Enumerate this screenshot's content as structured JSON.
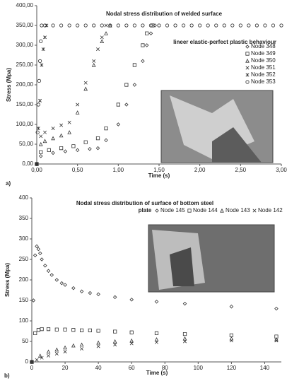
{
  "chart_data": [
    {
      "type": "scatter",
      "title": "Nodal stress distribution of welded surface",
      "annotation": "lineer elastic-perfect plastic behaviour",
      "panel_label": "a)",
      "x_label": "Time (s)",
      "y_label": "Stress (Mpa)",
      "xlim": [
        0,
        3
      ],
      "ylim": [
        0,
        400
      ],
      "xticks": [
        {
          "value": 0,
          "label": "0,00"
        },
        {
          "value": 0.5,
          "label": "0,50"
        },
        {
          "value": 1,
          "label": "1,00"
        },
        {
          "value": 1.5,
          "label": "1,50"
        },
        {
          "value": 2,
          "label": "2,00"
        },
        {
          "value": 2.5,
          "label": "2,50"
        },
        {
          "value": 3,
          "label": "3,00"
        }
      ],
      "yticks": [
        {
          "value": 0,
          "label": "0,00"
        },
        {
          "value": 50,
          "label": "50,00"
        },
        {
          "value": 100,
          "label": "100,00"
        },
        {
          "value": 150,
          "label": "150,00"
        },
        {
          "value": 200,
          "label": "200,00"
        },
        {
          "value": 250,
          "label": "250,00"
        },
        {
          "value": 300,
          "label": "300,00"
        },
        {
          "value": 350,
          "label": "350,00"
        },
        {
          "value": 400,
          "label": "400,00"
        }
      ],
      "series": [
        {
          "name": "Node 348",
          "marker": "diamond",
          "color": "#333333",
          "x": [
            0,
            0.05,
            0.2,
            0.35,
            0.5,
            0.65,
            0.75,
            0.85,
            1.0,
            1.1,
            1.2,
            1.3,
            1.35,
            1.4,
            1.45
          ],
          "values": [
            0,
            20,
            28,
            32,
            35,
            38,
            40,
            60,
            100,
            150,
            200,
            260,
            300,
            330,
            350
          ]
        },
        {
          "name": "Node 349",
          "marker": "square",
          "color": "#333333",
          "x": [
            0,
            0.05,
            0.15,
            0.3,
            0.45,
            0.6,
            0.75,
            0.85,
            1.0,
            1.1,
            1.2,
            1.3,
            1.35,
            1.42
          ],
          "values": [
            0,
            30,
            35,
            40,
            45,
            55,
            65,
            90,
            150,
            200,
            250,
            300,
            330,
            350
          ]
        },
        {
          "name": "Node 350",
          "marker": "triangle",
          "color": "#333333",
          "x": [
            0,
            0.05,
            0.1,
            0.2,
            0.3,
            0.4,
            0.5,
            0.6,
            0.7,
            0.8,
            0.85,
            0.9
          ],
          "values": [
            0,
            50,
            58,
            65,
            72,
            80,
            130,
            190,
            250,
            310,
            330,
            350
          ]
        },
        {
          "name": "Node 351",
          "marker": "cross",
          "color": "#333333",
          "x": [
            0,
            0.05,
            0.1,
            0.2,
            0.3,
            0.4,
            0.5,
            0.6,
            0.7,
            0.75,
            0.8,
            0.85
          ],
          "values": [
            0,
            70,
            80,
            90,
            98,
            105,
            150,
            205,
            260,
            290,
            320,
            350
          ]
        },
        {
          "name": "Node 352",
          "marker": "star",
          "color": "#333333",
          "x": [
            0,
            0.02,
            0.04,
            0.06,
            0.08,
            0.1,
            0.12
          ],
          "values": [
            0,
            90,
            160,
            250,
            290,
            320,
            350
          ]
        },
        {
          "name": "Node 353",
          "marker": "circle",
          "color": "#333333",
          "x": [
            0,
            0.01,
            0.02,
            0.03,
            0.04,
            0.05,
            0.06,
            0.1,
            0.2,
            0.3,
            0.4,
            0.5,
            0.6,
            0.7,
            0.8,
            0.9,
            1.0,
            1.1,
            1.2,
            1.3,
            1.4,
            1.5,
            1.6,
            1.7,
            1.8,
            1.9,
            2.0,
            2.1,
            2.2,
            2.3,
            2.4,
            2.5,
            2.6,
            2.7,
            2.8,
            2.9,
            3.0
          ],
          "values": [
            0,
            80,
            150,
            210,
            260,
            310,
            350,
            350,
            350,
            350,
            350,
            350,
            350,
            350,
            350,
            350,
            350,
            350,
            350,
            350,
            350,
            350,
            350,
            350,
            350,
            350,
            350,
            350,
            350,
            350,
            350,
            350,
            350,
            350,
            350,
            350,
            350
          ]
        }
      ]
    },
    {
      "type": "scatter",
      "title": "Nodal stress distribution of surface of bottom steel plate",
      "panel_label": "b)",
      "x_label": "Time (s)",
      "y_label": "Stress (Mpa)",
      "xlim": [
        0,
        150
      ],
      "ylim": [
        0,
        400
      ],
      "xticks": [
        0,
        20,
        40,
        60,
        80,
        100,
        120,
        140
      ],
      "yticks": [
        0,
        50,
        100,
        150,
        200,
        250,
        300,
        350,
        400
      ],
      "series": [
        {
          "name": "Node 145",
          "marker": "diamond",
          "color": "#333333",
          "x": [
            0,
            1,
            2,
            3,
            4,
            5,
            6,
            8,
            10,
            12,
            15,
            18,
            20,
            25,
            30,
            35,
            40,
            50,
            60,
            75,
            92,
            120,
            147
          ],
          "values": [
            0,
            150,
            260,
            282,
            275,
            265,
            250,
            235,
            222,
            212,
            200,
            192,
            188,
            180,
            172,
            168,
            165,
            158,
            152,
            147,
            142,
            135,
            130
          ]
        },
        {
          "name": "Node 144",
          "marker": "square",
          "color": "#333333",
          "x": [
            0,
            2,
            4,
            6,
            10,
            15,
            20,
            25,
            30,
            35,
            40,
            50,
            60,
            75,
            92,
            120,
            147
          ],
          "values": [
            0,
            70,
            78,
            80,
            80,
            79,
            79,
            78,
            77,
            77,
            76,
            74,
            72,
            70,
            68,
            65,
            62
          ]
        },
        {
          "name": "Node 143",
          "marker": "triangle",
          "color": "#333333",
          "x": [
            0,
            5,
            10,
            15,
            20,
            25,
            30,
            40,
            50,
            60,
            75,
            92,
            120,
            147
          ],
          "values": [
            0,
            15,
            25,
            30,
            35,
            40,
            42,
            47,
            50,
            52,
            55,
            57,
            57,
            55
          ]
        },
        {
          "name": "Node 142",
          "marker": "cross",
          "color": "#333333",
          "x": [
            0,
            3,
            6,
            10,
            15,
            20,
            30,
            40,
            50,
            60,
            75,
            92,
            120,
            147
          ],
          "values": [
            0,
            5,
            10,
            15,
            20,
            25,
            32,
            38,
            42,
            45,
            48,
            50,
            52,
            52
          ]
        }
      ]
    }
  ]
}
